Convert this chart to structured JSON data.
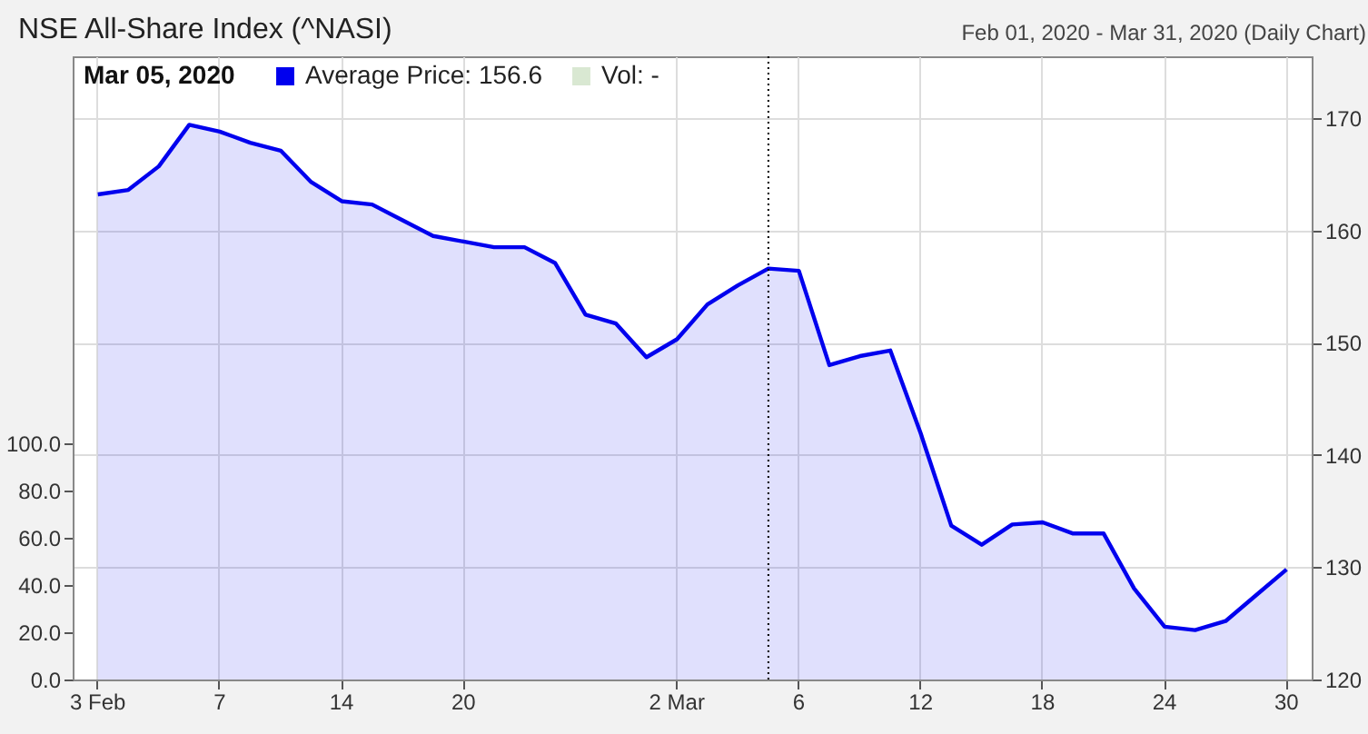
{
  "chart_data": {
    "type": "area",
    "title": "NSE All-Share Index (^NASI)",
    "subtitle": "Feb 01, 2020 - Mar 31, 2020 (Daily Chart)",
    "categories": [
      "3 Feb",
      null,
      null,
      null,
      "7",
      null,
      null,
      null,
      "14",
      null,
      null,
      null,
      "20",
      null,
      null,
      null,
      null,
      null,
      null,
      "2 Mar",
      null,
      null,
      null,
      "6",
      null,
      null,
      null,
      "12",
      null,
      null,
      null,
      "18",
      null,
      null,
      null,
      "24",
      null,
      null,
      null,
      "30"
    ],
    "series": [
      {
        "name": "Average Price: 156.6",
        "color": "#0000ee",
        "axis": "y2",
        "values": [
          163.2,
          163.6,
          165.7,
          169.4,
          168.8,
          167.8,
          167.1,
          164.3,
          162.6,
          162.3,
          160.9,
          159.5,
          159.0,
          158.5,
          158.5,
          157.1,
          152.5,
          151.7,
          148.7,
          150.3,
          153.4,
          155.1,
          156.6,
          156.4,
          148.0,
          148.8,
          149.3,
          141.9,
          133.7,
          132.0,
          133.8,
          134.0,
          133.0,
          133.0,
          128.1,
          124.7,
          124.4,
          125.2,
          127.5,
          129.8
        ]
      },
      {
        "name": "Vol: -",
        "color": "#d9e8d2",
        "values": [
          null,
          null,
          null,
          null,
          null,
          null,
          null,
          null,
          null,
          null,
          null,
          null,
          null,
          null,
          null,
          null,
          null,
          null,
          null,
          null,
          null,
          null,
          null,
          null,
          null,
          null,
          null,
          null,
          null,
          null,
          null,
          null,
          null,
          null,
          null,
          null,
          null,
          null,
          null,
          null
        ]
      }
    ],
    "ylim": [
      0,
      264
    ],
    "yticks": [
      {
        "value": 0,
        "label": "0.0"
      },
      {
        "value": 20,
        "label": "20.0"
      },
      {
        "value": 40,
        "label": "40.0"
      },
      {
        "value": 60,
        "label": "60.0"
      },
      {
        "value": 80,
        "label": "80.0"
      },
      {
        "value": 100,
        "label": "100.0"
      }
    ],
    "y2lim": [
      120,
      175.5
    ],
    "y2ticks": [
      120,
      130,
      140,
      150,
      160,
      170
    ],
    "annotations": [
      "Mar 05, 2020"
    ],
    "grid": true,
    "legend": "top left"
  }
}
